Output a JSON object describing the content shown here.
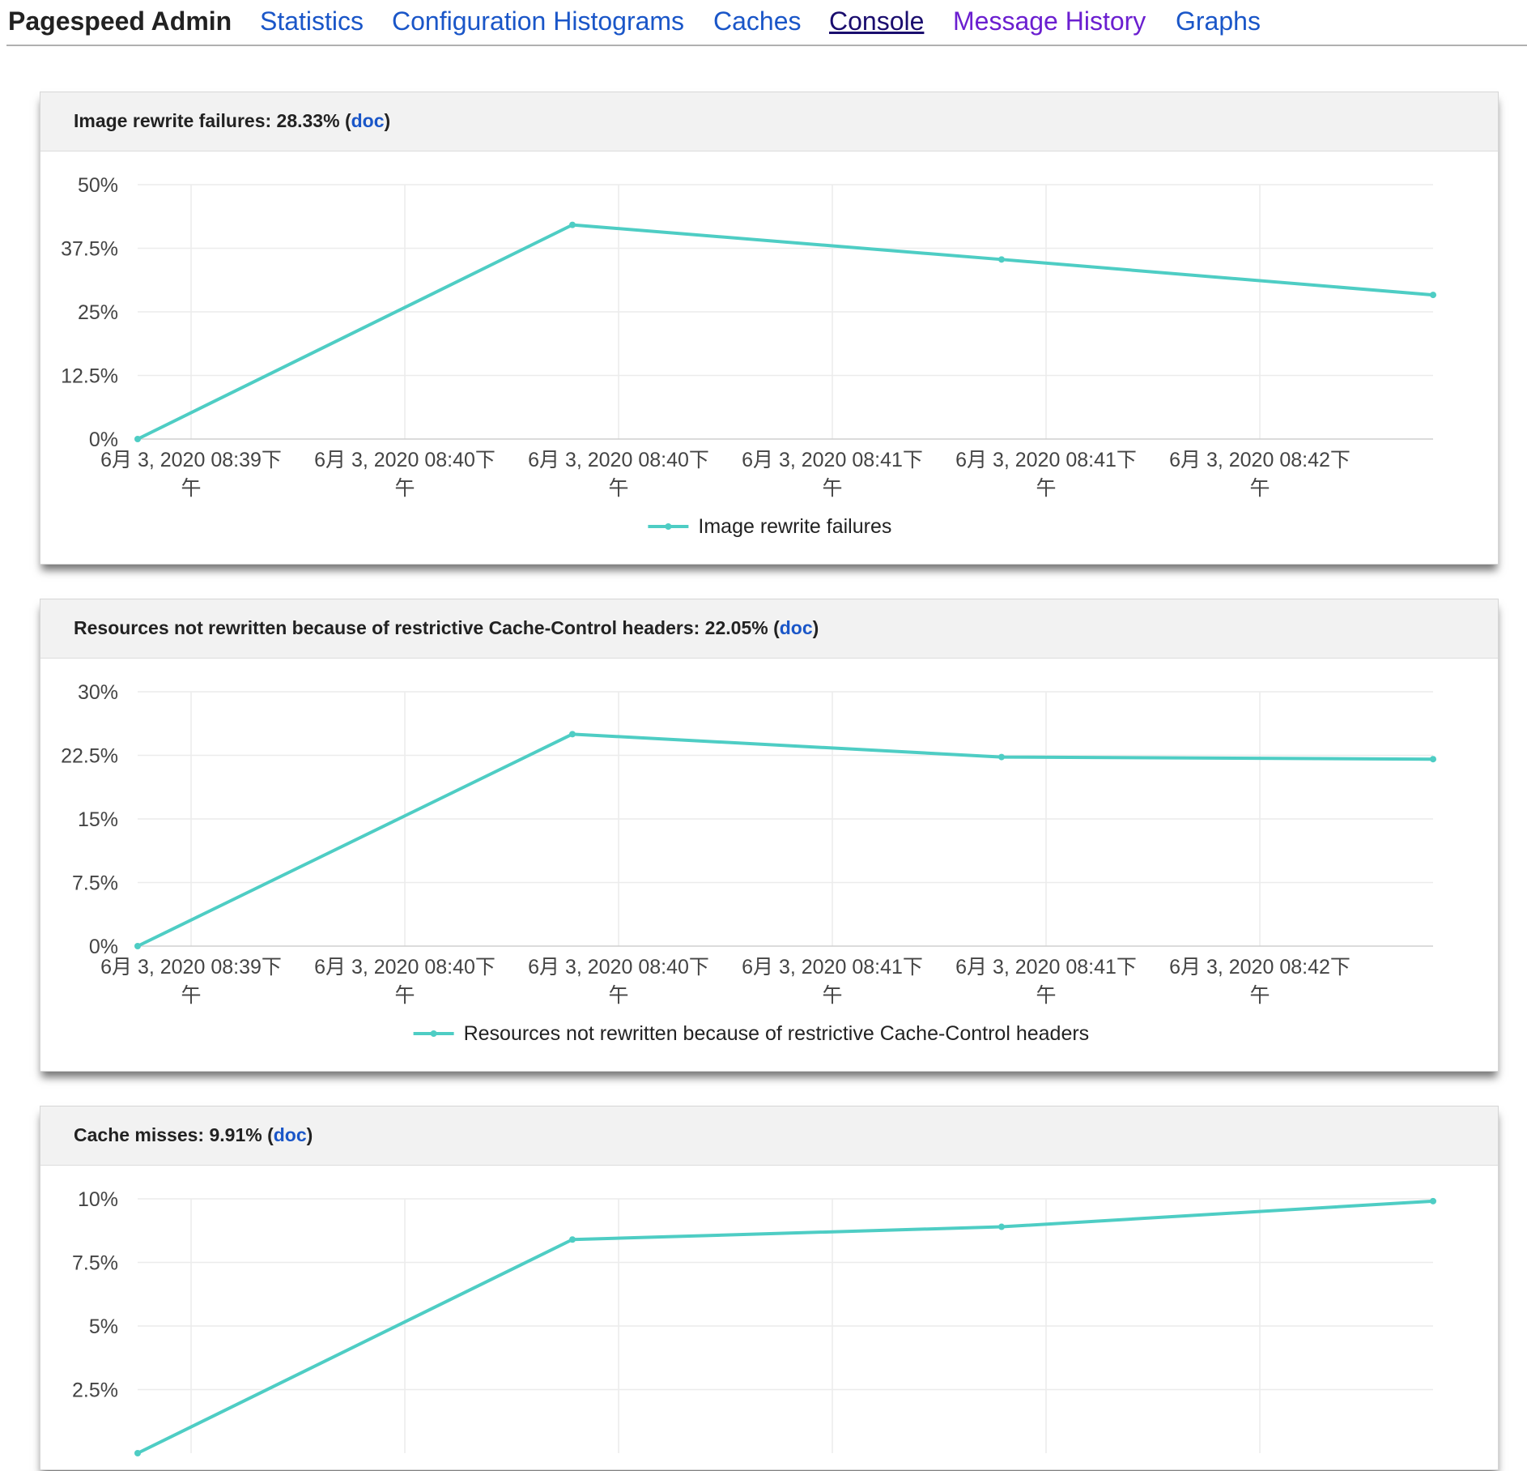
{
  "nav": {
    "title": "Pagespeed Admin",
    "links": [
      "Statistics",
      "Configuration Histograms",
      "Caches",
      "Console",
      "Message History",
      "Graphs"
    ]
  },
  "colors": {
    "series": "#4ecdc4",
    "link": "#1a56c8",
    "header_bg": "#f2f2f2"
  },
  "cards": [
    {
      "title_prefix": "Image rewrite failures: 28.33% (",
      "doc_label": "doc",
      "title_suffix": ")"
    },
    {
      "title_prefix": "Resources not rewritten because of restrictive Cache-Control headers: 22.05% (",
      "doc_label": "doc",
      "title_suffix": ")"
    },
    {
      "title_prefix": "Cache misses: 9.91% (",
      "doc_label": "doc",
      "title_suffix": ")"
    }
  ],
  "chart_data": [
    {
      "type": "line",
      "x_tick_labels": [
        [
          "6月 3, 2020 08:39下",
          "午"
        ],
        [
          "6月 3, 2020 08:40下",
          "午"
        ],
        [
          "6月 3, 2020 08:40下",
          "午"
        ],
        [
          "6月 3, 2020 08:41下",
          "午"
        ],
        [
          "6月 3, 2020 08:41下",
          "午"
        ],
        [
          "6月 3, 2020 08:42下",
          "午"
        ]
      ],
      "y_tick_labels": [
        "0%",
        "12.5%",
        "25%",
        "37.5%",
        "50%"
      ],
      "ylim": [
        0,
        50
      ],
      "x": [
        0,
        1,
        2,
        3
      ],
      "series": [
        {
          "name": "Image rewrite failures",
          "values": [
            0,
            42.1,
            35.3,
            28.33
          ]
        }
      ],
      "legend": "bottom",
      "grid": true
    },
    {
      "type": "line",
      "x_tick_labels": [
        [
          "6月 3, 2020 08:39下",
          "午"
        ],
        [
          "6月 3, 2020 08:40下",
          "午"
        ],
        [
          "6月 3, 2020 08:40下",
          "午"
        ],
        [
          "6月 3, 2020 08:41下",
          "午"
        ],
        [
          "6月 3, 2020 08:41下",
          "午"
        ],
        [
          "6月 3, 2020 08:42下",
          "午"
        ]
      ],
      "y_tick_labels": [
        "0%",
        "7.5%",
        "15%",
        "22.5%",
        "30%"
      ],
      "ylim": [
        0,
        30
      ],
      "x": [
        0,
        1,
        2,
        3
      ],
      "series": [
        {
          "name": "Resources not rewritten because of restrictive Cache-Control headers",
          "values": [
            0,
            25.0,
            22.3,
            22.05
          ]
        }
      ],
      "legend": "bottom",
      "grid": true
    },
    {
      "type": "line",
      "x_tick_labels": [],
      "y_tick_labels": [
        "2.5%",
        "5%",
        "7.5%",
        "10%"
      ],
      "ylim": [
        0,
        10
      ],
      "x": [
        0,
        1,
        2,
        3
      ],
      "series": [
        {
          "name": "Cache misses",
          "values": [
            0,
            8.4,
            8.9,
            9.91
          ]
        }
      ],
      "legend": "bottom",
      "grid": true
    }
  ]
}
